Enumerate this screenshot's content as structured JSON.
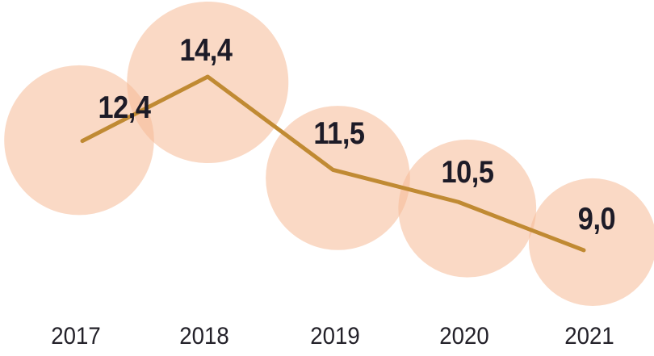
{
  "chart_data": {
    "type": "line",
    "subtype": "bubble-line",
    "title": "",
    "xlabel": "",
    "ylabel": "",
    "categories": [
      "2017",
      "2018",
      "2019",
      "2020",
      "2021"
    ],
    "series": [
      {
        "name": "value",
        "values": [
          12.4,
          14.4,
          11.5,
          10.5,
          9.0
        ]
      }
    ],
    "point_labels": [
      "12,4",
      "14,4",
      "11,5",
      "10,5",
      "9,0"
    ],
    "decimal_separator": ",",
    "ylim": [
      9.0,
      14.4
    ],
    "grid": false,
    "legend": "none",
    "axes_drawn": false,
    "bubble_area_proportional_to_value": true,
    "colors": {
      "background": "#FFFFFF",
      "bubble_fill": "#F5B995",
      "bubble_opacity": 0.55,
      "line_color": "#C08A33",
      "value_label_color": "#1D1B27",
      "year_label_color": "#232129"
    }
  }
}
